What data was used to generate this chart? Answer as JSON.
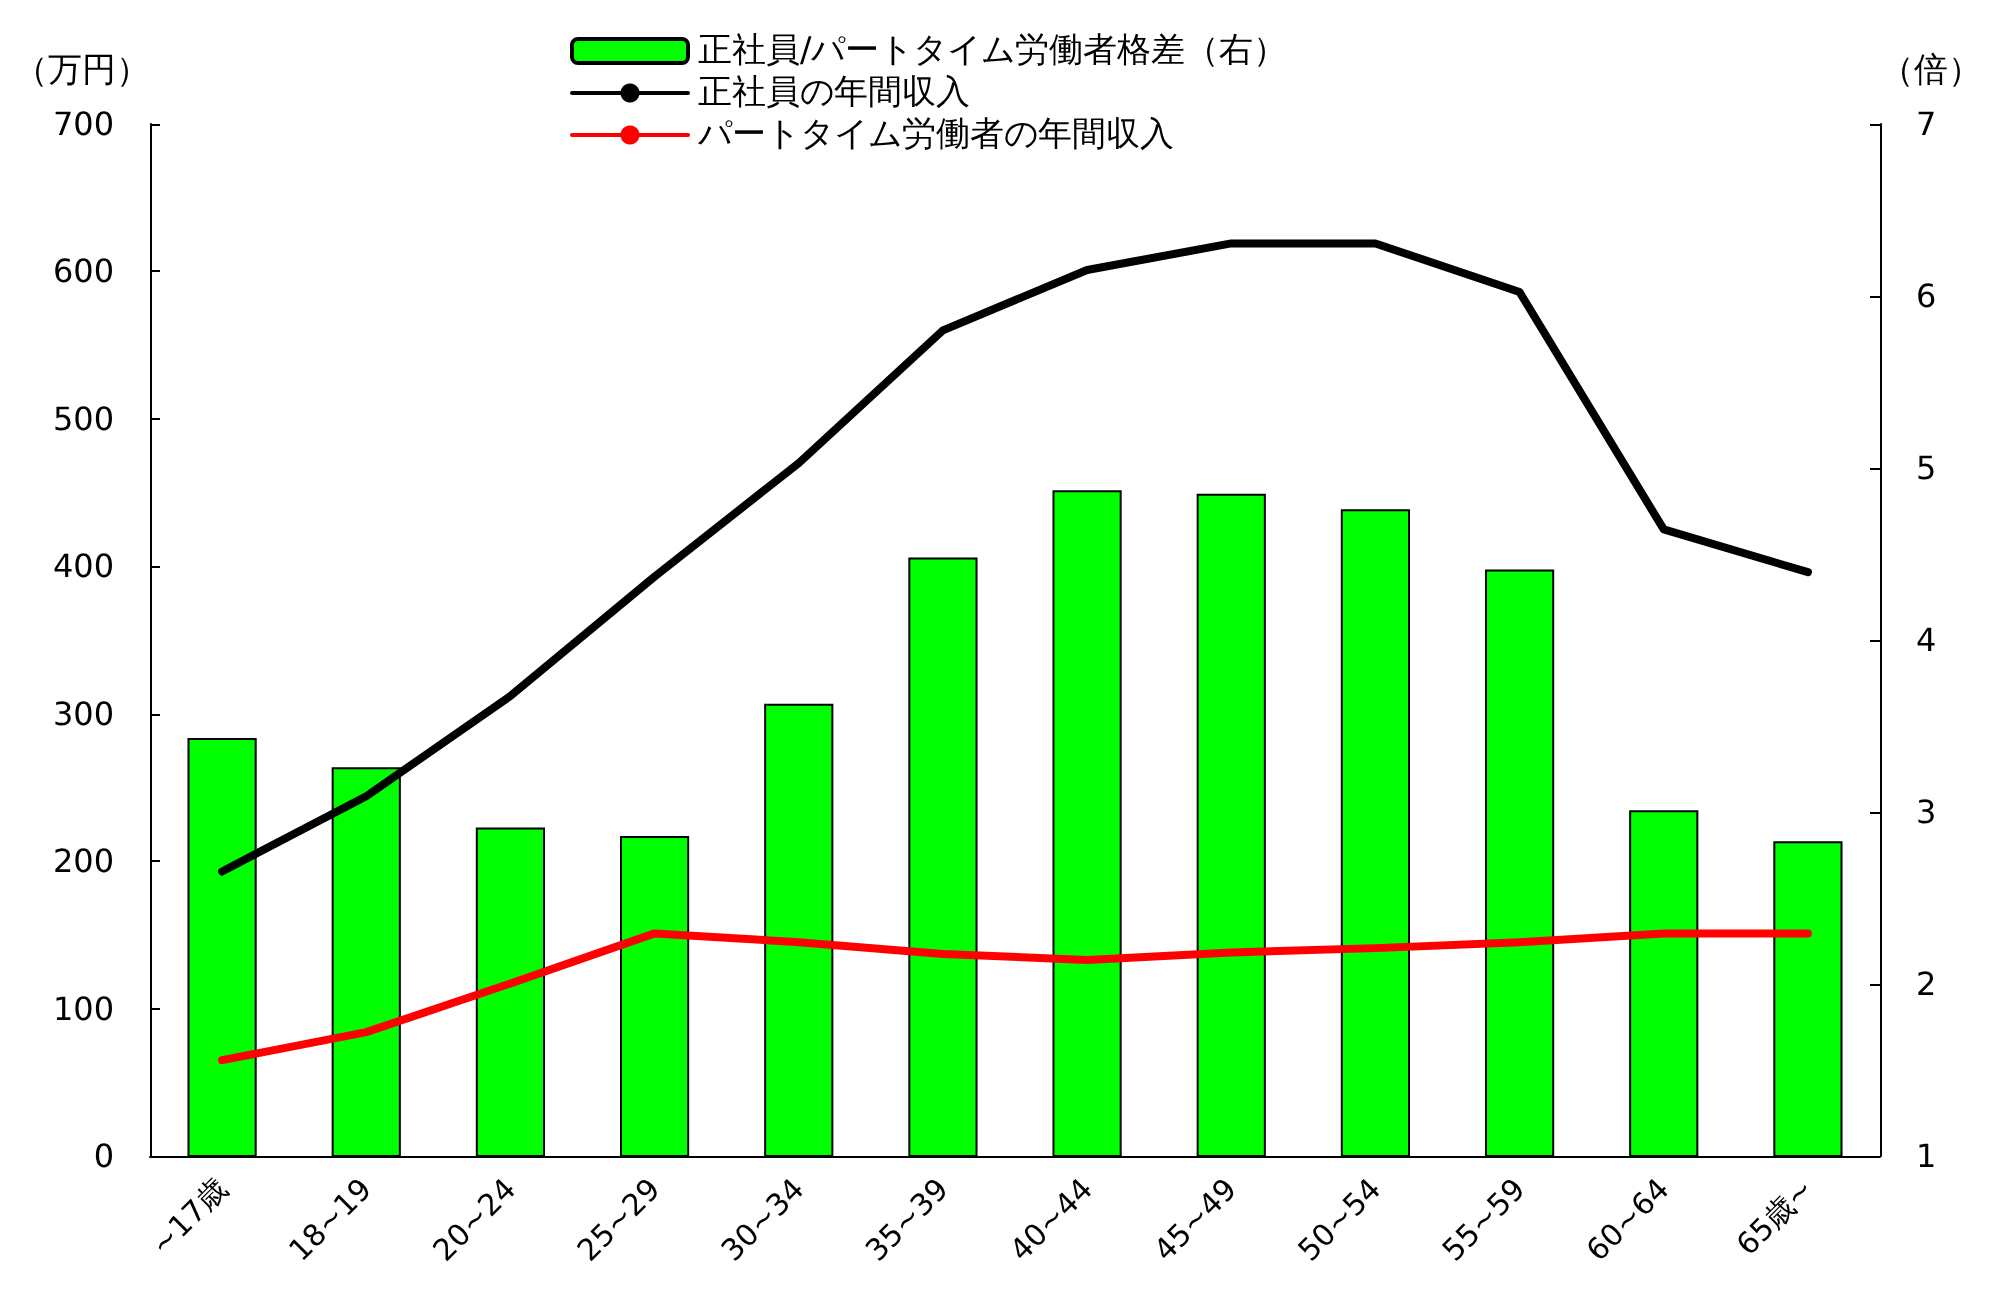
{
  "chart_data": {
    "type": "bar",
    "ylabel": "（万円）",
    "y2label": "（倍）",
    "categories": [
      "~17歳",
      "18~19",
      "20~24",
      "25~29",
      "30~34",
      "35~39",
      "40~44",
      "45~49",
      "50~54",
      "55~59",
      "60~64",
      "65歳~"
    ],
    "series": [
      {
        "name": "正社員/パートタイム労働者格差（右）",
        "axis": "y2",
        "color": "#00ff00",
        "values": [
          3.43,
          3.26,
          2.91,
          2.86,
          3.63,
          4.48,
          4.87,
          4.85,
          4.76,
          4.41,
          3.01,
          2.83
        ]
      },
      {
        "name": "正社員の年間収入",
        "type": "line",
        "color": "#000000",
        "values": [
          193,
          244,
          312,
          393,
          470,
          560,
          601,
          619,
          619,
          586,
          425,
          396
        ]
      },
      {
        "name": "パートタイム労働者の年間収入",
        "type": "line",
        "color": "#ff0000",
        "values": [
          65,
          84,
          117,
          151,
          145,
          137,
          133,
          138,
          141,
          145,
          151,
          151
        ]
      }
    ],
    "ylim": [
      0,
      700
    ],
    "yticks": [
      0,
      100,
      200,
      300,
      400,
      500,
      600,
      700
    ],
    "y2lim": [
      1,
      7
    ],
    "y2ticks": [
      1,
      2,
      3,
      4,
      5,
      6,
      7
    ],
    "grid": false,
    "legend": "top",
    "marker": "none",
    "line_style": "solid"
  }
}
